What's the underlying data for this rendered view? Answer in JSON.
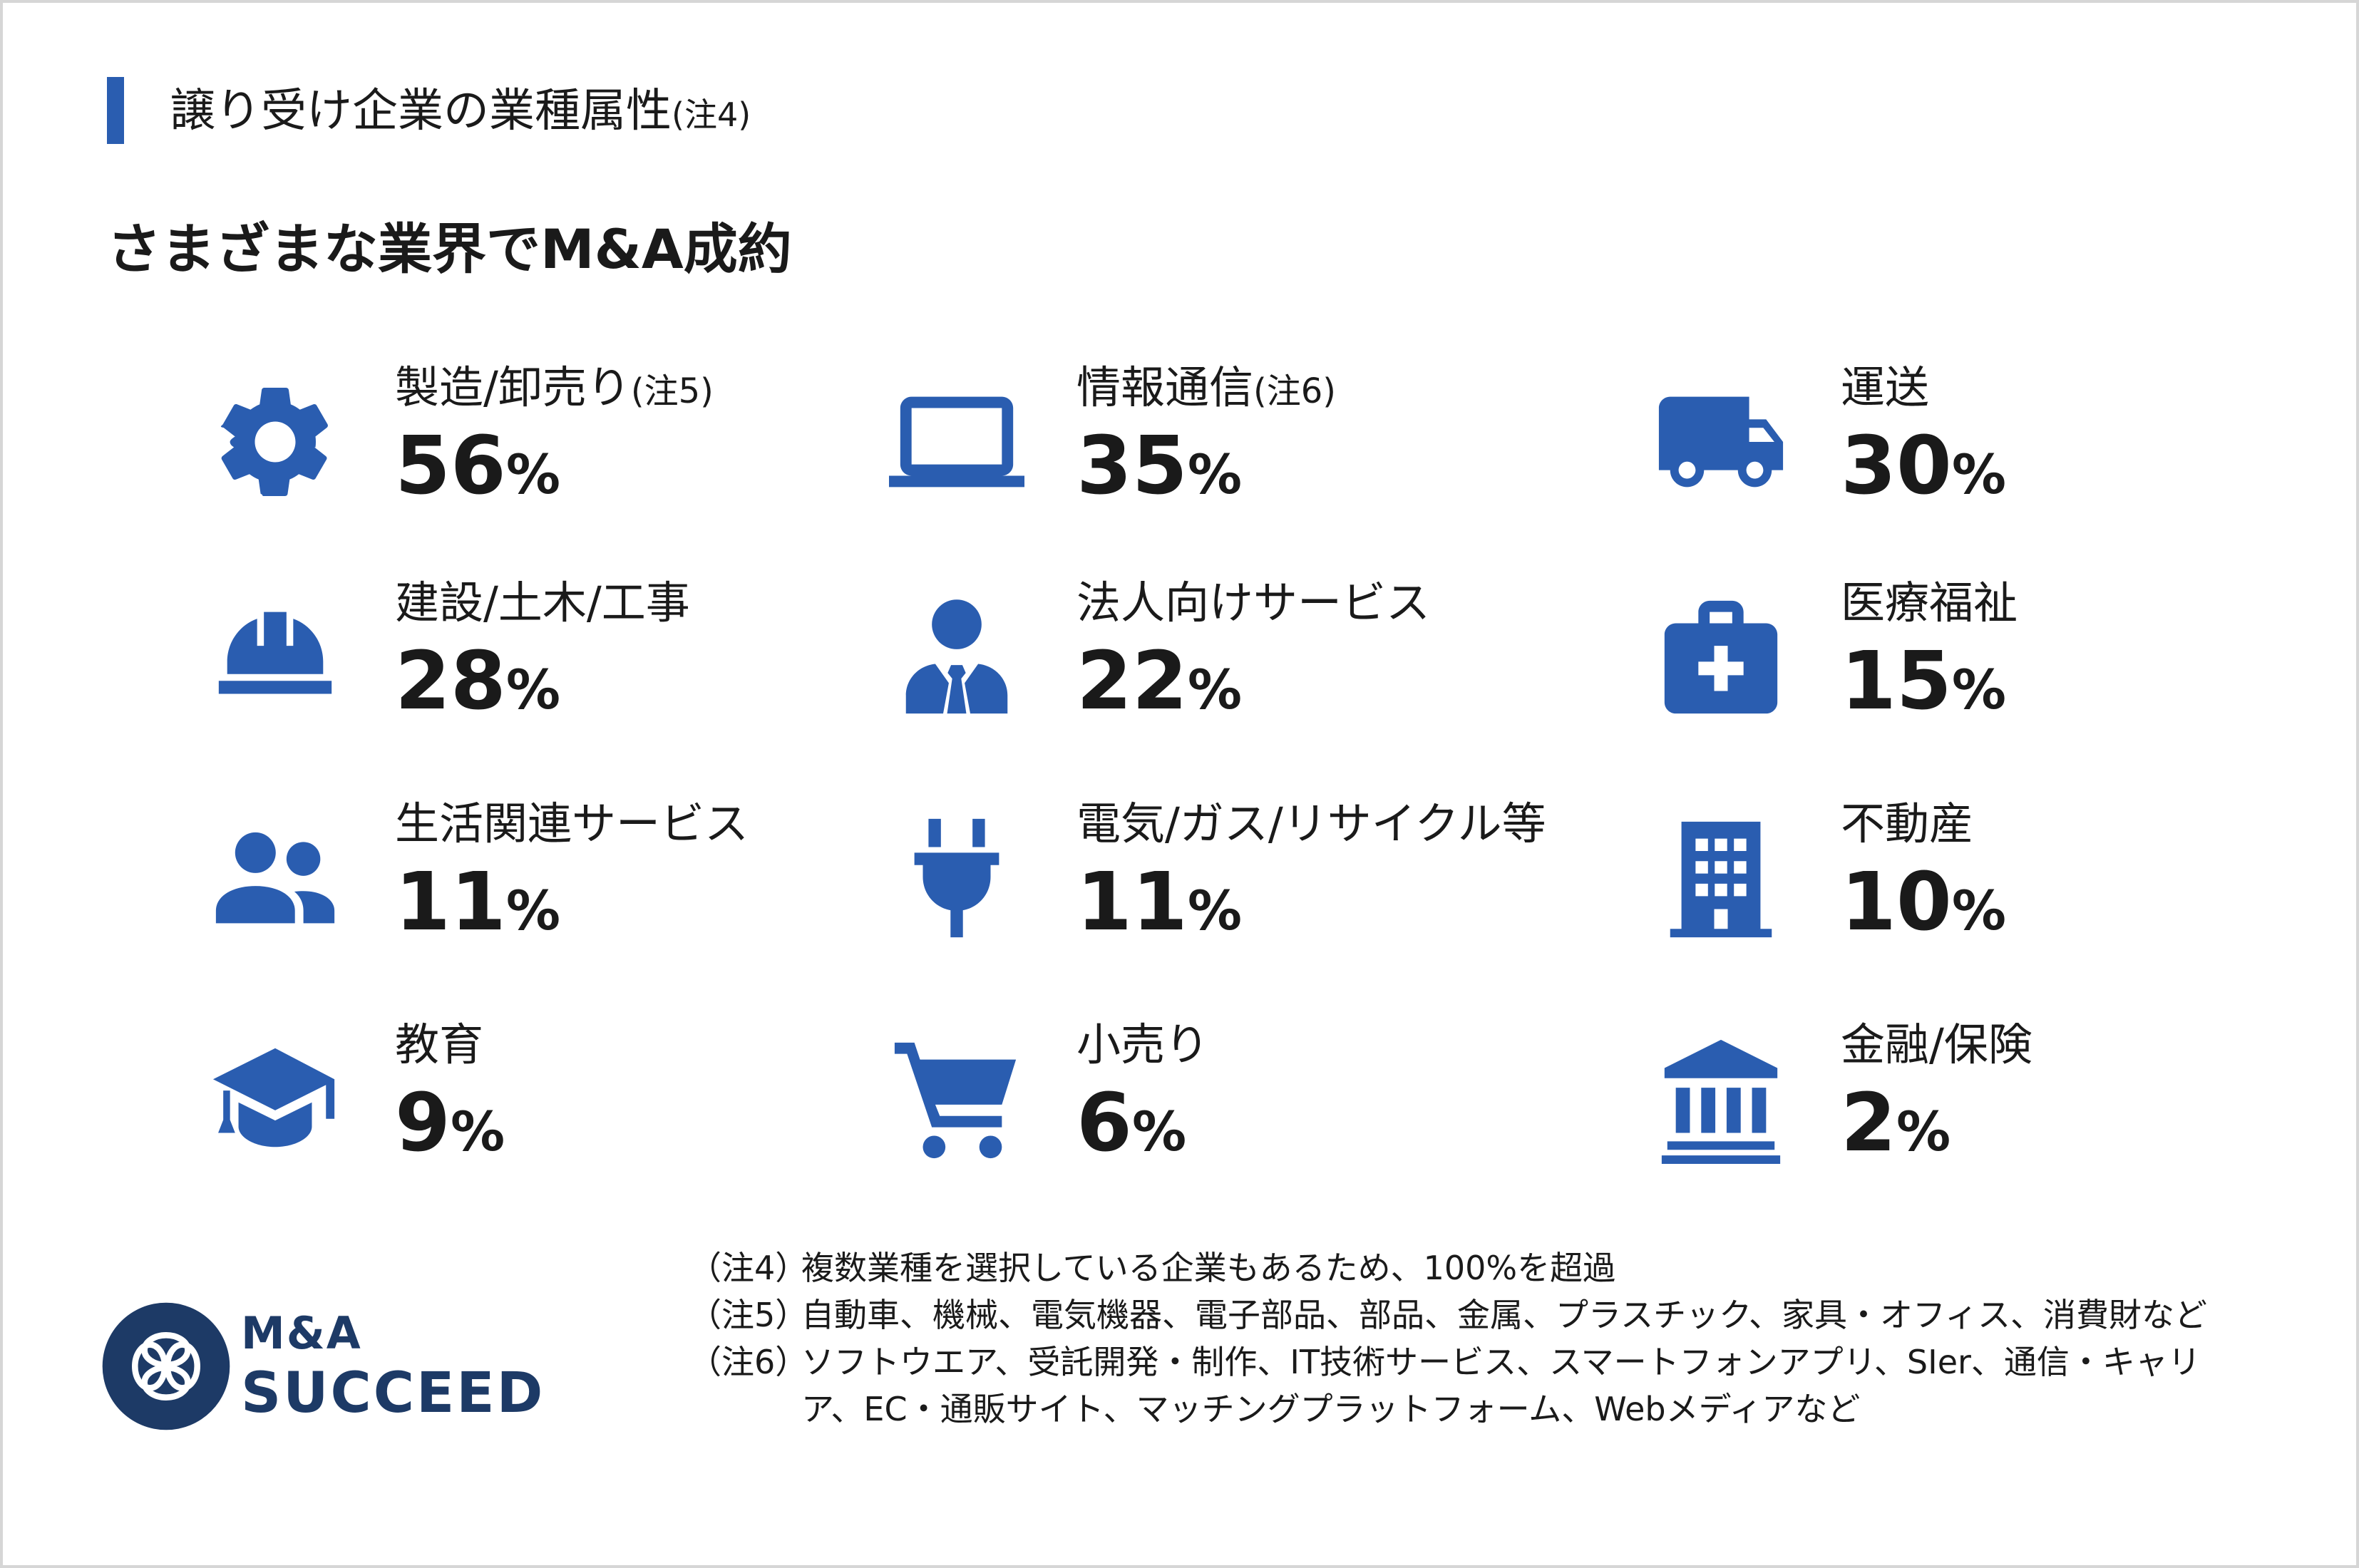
{
  "header": {
    "section_title": "譲り受け企業の業種属性",
    "section_note": "(注4)",
    "headline": "さまざまな業界でM&A成約"
  },
  "industries": [
    {
      "icon": "gear-icon",
      "label": "製造/卸売り",
      "note": "(注5)",
      "value": "56",
      "unit": "%"
    },
    {
      "icon": "laptop-icon",
      "label": "情報通信",
      "note": "(注6)",
      "value": "35",
      "unit": "%"
    },
    {
      "icon": "truck-icon",
      "label": "運送",
      "note": "",
      "value": "30",
      "unit": "%"
    },
    {
      "icon": "hard-hat-icon",
      "label": "建設/土木/工事",
      "note": "",
      "value": "28",
      "unit": "%"
    },
    {
      "icon": "business-person-icon",
      "label": "法人向けサービス",
      "note": "",
      "value": "22",
      "unit": "%"
    },
    {
      "icon": "first-aid-kit-icon",
      "label": "医療福祉",
      "note": "",
      "value": "15",
      "unit": "%"
    },
    {
      "icon": "users-icon",
      "label": "生活関連サービス",
      "note": "",
      "value": "11",
      "unit": "%"
    },
    {
      "icon": "electric-plug-icon",
      "label": "電気/ガス/リサイクル等",
      "note": "",
      "value": "11",
      "unit": "%"
    },
    {
      "icon": "building-icon",
      "label": "不動産",
      "note": "",
      "value": "10",
      "unit": "%"
    },
    {
      "icon": "graduation-cap-icon",
      "label": "教育",
      "note": "",
      "value": "9",
      "unit": "%"
    },
    {
      "icon": "shopping-cart-icon",
      "label": "小売り",
      "note": "",
      "value": "6",
      "unit": "%"
    },
    {
      "icon": "bank-icon",
      "label": "金融/保険",
      "note": "",
      "value": "2",
      "unit": "%"
    }
  ],
  "logo": {
    "line1": "M&A",
    "line2": "SUCCEED"
  },
  "footnotes": [
    {
      "mark": "（注4）",
      "text": "複数業種を選択している企業もあるため、100%を超過"
    },
    {
      "mark": "（注5）",
      "text": "自動車、機械、電気機器、電子部品、部品、金属、プラスチック、家具・オフィス、消費財など"
    },
    {
      "mark": "（注6）",
      "text": "ソフトウエア、受託開発・制作、IT技術サービス、スマートフォンアプリ、SIer、通信・キャリア、EC・通販サイト、マッチングプラットフォーム、Webメディアなど"
    }
  ],
  "colors": {
    "accent": "#2a5db0",
    "logo": "#1d3a66"
  }
}
